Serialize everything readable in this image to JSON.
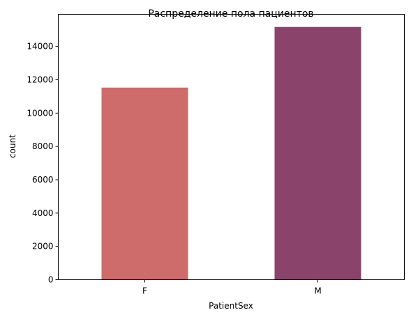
{
  "chart_data": {
    "type": "bar",
    "title": "Распределение пола пациентов",
    "xlabel": "PatientSex",
    "ylabel": "count",
    "categories": [
      "F",
      "M"
    ],
    "values": [
      11530,
      15170
    ],
    "colors": [
      "#cd6c6a",
      "#8a436b"
    ],
    "ylim": [
      0,
      15930
    ],
    "yticks": [
      0,
      2000,
      4000,
      6000,
      8000,
      10000,
      12000,
      14000
    ],
    "grid": false,
    "legend": "none"
  }
}
